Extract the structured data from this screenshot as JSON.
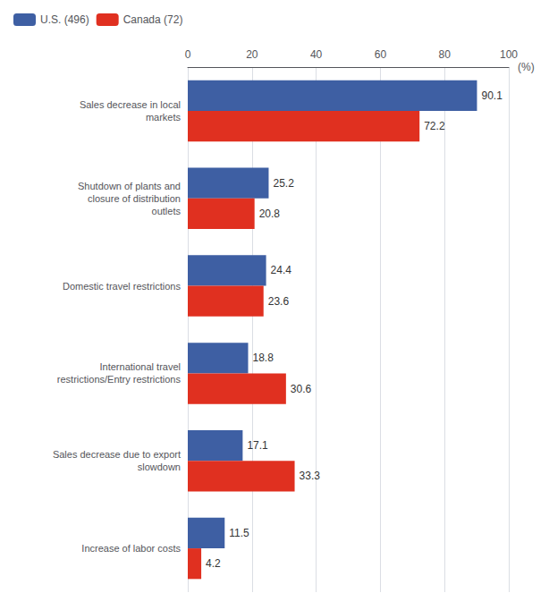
{
  "chart_data": {
    "type": "bar",
    "orientation": "horizontal",
    "categories": [
      "Sales decrease in local\nmarkets",
      "Shutdown of plants and\nclosure of distribution\noutlets",
      "Domestic travel restrictions",
      "International travel\nrestrictions/Entry restrictions",
      "Sales decrease due to export\nslowdown",
      "Increase of labor costs"
    ],
    "series": [
      {
        "name": "U.S. (496)",
        "color": "#3E5FA3",
        "values": [
          90.1,
          25.2,
          24.4,
          18.8,
          17.1,
          11.5
        ]
      },
      {
        "name": "Canada (72)",
        "color": "#E03020",
        "values": [
          72.2,
          20.8,
          23.6,
          30.6,
          33.3,
          4.2
        ]
      }
    ],
    "xlabel": "(%)",
    "xlim": [
      0,
      100
    ],
    "xticks": [
      0,
      20,
      40,
      60,
      80,
      100
    ],
    "grid": true,
    "legend": "upper left",
    "data_labels": true
  }
}
